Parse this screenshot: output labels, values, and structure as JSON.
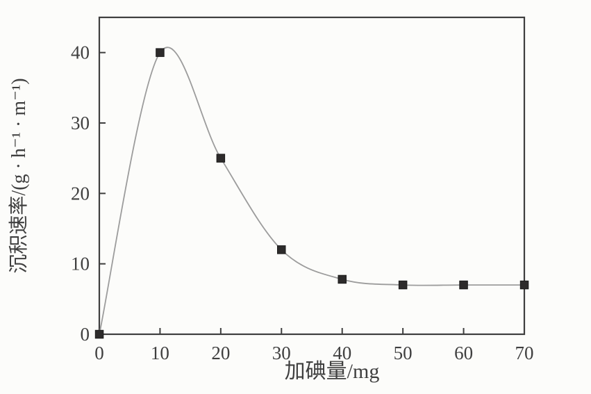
{
  "figure": {
    "background_color": "#fcfcfa",
    "axis_color": "#3e3e3e",
    "curve_color": "#9c9c9c",
    "marker_color": "#2d2b2b",
    "marker_edge_color": "#1b1b1b",
    "text_color": "#3f3f3f"
  },
  "chart_data": {
    "type": "line",
    "title": "",
    "xlabel": "加碘量/mg",
    "ylabel": "沉积速率/(g · h⁻¹ · m⁻¹)",
    "x": [
      0,
      10,
      20,
      30,
      40,
      50,
      60,
      70
    ],
    "y": [
      0,
      40,
      25,
      12,
      7.8,
      7,
      7,
      7
    ],
    "xticks": [
      0,
      10,
      20,
      30,
      40,
      50,
      60,
      70
    ],
    "yticks": [
      0,
      10,
      20,
      30,
      40
    ],
    "xtick_labels": [
      "0",
      "10",
      "20",
      "30",
      "40",
      "50",
      "60",
      "70"
    ],
    "ytick_labels": [
      "0",
      "10",
      "20",
      "30",
      "40"
    ],
    "xlim": [
      0,
      70
    ],
    "ylim": [
      0,
      45
    ],
    "grid": false,
    "legend": null,
    "marker": "square",
    "frame": "box",
    "tick_direction": "in"
  }
}
